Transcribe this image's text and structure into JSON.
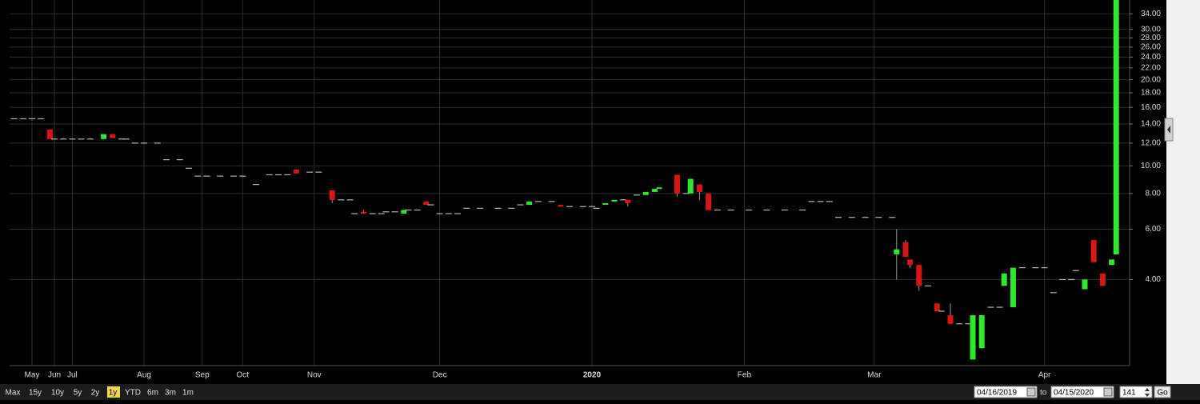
{
  "chart_data": {
    "type": "candlestick",
    "log_scale": true,
    "grid": true,
    "up_color": "#2ee82e",
    "down_color": "#d81414",
    "flat_color": "#b4b4b4",
    "xlim": [
      0,
      250
    ],
    "xticks": [
      {
        "value": 5,
        "label": "May"
      },
      {
        "value": 10,
        "label": "Jun"
      },
      {
        "value": 14,
        "label": "Jul"
      },
      {
        "value": 30,
        "label": "Aug"
      },
      {
        "value": 43,
        "label": "Sep"
      },
      {
        "value": 52,
        "label": "Oct"
      },
      {
        "value": 68,
        "label": "Nov"
      },
      {
        "value": 96,
        "label": "Dec"
      },
      {
        "value": 130,
        "label": "2020"
      },
      {
        "value": 164,
        "label": "Feb"
      },
      {
        "value": 193,
        "label": "Mar"
      },
      {
        "value": 231,
        "label": "Apr"
      }
    ],
    "ylim": [
      2,
      38
    ],
    "yticks": [
      {
        "value": 4,
        "label": "4.00"
      },
      {
        "value": 6,
        "label": "6.00"
      },
      {
        "value": 8,
        "label": "8.00"
      },
      {
        "value": 10,
        "label": "10.00"
      },
      {
        "value": 12,
        "label": "12.00"
      },
      {
        "value": 14,
        "label": "14.00"
      },
      {
        "value": 16,
        "label": "16.00"
      },
      {
        "value": 18,
        "label": "18.00"
      },
      {
        "value": 20,
        "label": "20.00"
      },
      {
        "value": 22,
        "label": "22.00"
      },
      {
        "value": 24,
        "label": "24.00"
      },
      {
        "value": 26,
        "label": "26.00"
      },
      {
        "value": 28,
        "label": "28.00"
      },
      {
        "value": 30,
        "label": "30.00"
      },
      {
        "value": 34,
        "label": "34.00"
      }
    ],
    "x": [
      1,
      3,
      5,
      7,
      9,
      10,
      12,
      14,
      16,
      18,
      21,
      23,
      25,
      26,
      28,
      30,
      33,
      35,
      38,
      40,
      42,
      44,
      47,
      50,
      52,
      55,
      58,
      60,
      62,
      64,
      67,
      69,
      72,
      74,
      76,
      77,
      79,
      81,
      83,
      84,
      86,
      88,
      89,
      91,
      93,
      94,
      96,
      98,
      100,
      102,
      105,
      109,
      112,
      114,
      116,
      118,
      121,
      123,
      125,
      128,
      130,
      131,
      133,
      135,
      137,
      138,
      140,
      142,
      144,
      145,
      149,
      151,
      152,
      154,
      156,
      158,
      161,
      165,
      169,
      173,
      177,
      179,
      181,
      183,
      185,
      188,
      191,
      194,
      197,
      198,
      200,
      201,
      203,
      205,
      207,
      208,
      210,
      212,
      214,
      215,
      217,
      219,
      221,
      222,
      224,
      226,
      229,
      231,
      233,
      235,
      237,
      238,
      240,
      242,
      244,
      246,
      247
    ],
    "open": [
      14.6,
      14.6,
      14.6,
      14.6,
      13.4,
      12.4,
      12.4,
      12.4,
      12.4,
      12.4,
      12.4,
      12.9,
      12.4,
      12.4,
      12.0,
      12.0,
      12.0,
      10.5,
      10.5,
      9.8,
      9.2,
      9.2,
      9.2,
      9.2,
      9.2,
      8.6,
      9.3,
      9.3,
      9.3,
      9.7,
      9.5,
      9.5,
      8.2,
      7.6,
      7.6,
      6.8,
      6.9,
      6.8,
      6.8,
      6.9,
      6.9,
      6.8,
      7.0,
      7.0,
      7.5,
      7.3,
      6.8,
      6.8,
      6.8,
      7.1,
      7.1,
      7.1,
      7.1,
      7.3,
      7.3,
      7.5,
      7.5,
      7.3,
      7.2,
      7.2,
      7.2,
      7.1,
      7.3,
      7.5,
      7.6,
      7.6,
      7.9,
      7.9,
      8.1,
      8.3,
      9.3,
      8.0,
      8.0,
      8.6,
      8.0,
      7.0,
      7.0,
      7.0,
      7.0,
      7.0,
      7.0,
      7.5,
      7.5,
      7.5,
      6.6,
      6.6,
      6.6,
      6.6,
      6.6,
      4.9,
      5.4,
      4.7,
      4.5,
      3.8,
      3.3,
      3.1,
      3.0,
      2.8,
      2.8,
      2.1,
      2.3,
      3.2,
      3.2,
      3.8,
      3.2,
      4.4,
      4.4,
      4.4,
      3.6,
      4.0,
      4.0,
      4.3,
      3.7,
      5.5,
      4.2,
      4.5,
      4.9
    ],
    "high": [
      14.6,
      14.6,
      14.6,
      14.6,
      13.4,
      12.4,
      12.4,
      12.4,
      12.4,
      12.4,
      12.9,
      12.9,
      12.4,
      12.4,
      12.0,
      12.0,
      12.0,
      10.5,
      10.5,
      9.8,
      9.2,
      9.2,
      9.2,
      9.2,
      9.2,
      8.6,
      9.3,
      9.3,
      9.3,
      9.7,
      9.5,
      9.5,
      8.2,
      7.6,
      7.6,
      6.8,
      7.0,
      6.8,
      6.8,
      6.9,
      6.9,
      7.0,
      7.0,
      7.0,
      7.5,
      7.3,
      6.8,
      6.8,
      6.8,
      7.1,
      7.1,
      7.1,
      7.1,
      7.3,
      7.5,
      7.5,
      7.5,
      7.3,
      7.2,
      7.2,
      7.2,
      7.1,
      7.4,
      7.6,
      7.6,
      7.6,
      7.9,
      8.1,
      8.3,
      8.4,
      9.3,
      8.0,
      9.0,
      8.6,
      8.0,
      7.0,
      7.0,
      7.0,
      7.0,
      7.0,
      7.0,
      7.5,
      7.5,
      7.5,
      6.6,
      6.6,
      6.6,
      6.6,
      6.6,
      6.0,
      5.5,
      4.7,
      4.5,
      3.8,
      3.3,
      3.1,
      3.3,
      2.8,
      2.8,
      3.0,
      3.0,
      3.2,
      3.2,
      4.2,
      4.4,
      4.4,
      4.4,
      4.4,
      3.6,
      4.0,
      4.0,
      4.3,
      4.0,
      5.5,
      4.2,
      4.7,
      38
    ],
    "low": [
      14.6,
      14.6,
      14.6,
      14.6,
      12.4,
      12.4,
      12.4,
      12.4,
      12.4,
      12.4,
      12.4,
      12.5,
      12.4,
      12.4,
      12.0,
      12.0,
      12.0,
      10.5,
      10.5,
      9.8,
      9.2,
      9.2,
      9.2,
      9.2,
      9.2,
      8.6,
      9.3,
      9.3,
      9.3,
      9.4,
      9.5,
      9.5,
      7.4,
      7.6,
      7.6,
      6.8,
      6.8,
      6.8,
      6.8,
      6.9,
      6.9,
      6.8,
      7.0,
      7.0,
      7.3,
      7.3,
      6.8,
      6.8,
      6.8,
      7.1,
      7.1,
      7.1,
      7.1,
      7.3,
      7.3,
      7.5,
      7.5,
      7.2,
      7.2,
      7.2,
      7.2,
      7.1,
      7.3,
      7.5,
      7.6,
      7.2,
      7.9,
      7.9,
      8.1,
      8.3,
      7.8,
      8.0,
      8.0,
      7.6,
      7.0,
      7.0,
      7.0,
      7.0,
      7.0,
      7.0,
      7.0,
      7.5,
      7.5,
      7.5,
      6.6,
      6.6,
      6.6,
      6.6,
      6.6,
      4.0,
      4.8,
      4.4,
      3.65,
      3.8,
      3.1,
      3.1,
      2.8,
      2.8,
      2.8,
      2.1,
      2.3,
      3.2,
      3.2,
      3.8,
      3.2,
      4.4,
      4.4,
      4.4,
      3.6,
      4.0,
      4.0,
      4.3,
      3.7,
      4.6,
      3.8,
      4.5,
      4.9
    ],
    "close": [
      14.6,
      14.6,
      14.6,
      14.6,
      12.4,
      12.4,
      12.4,
      12.4,
      12.4,
      12.4,
      12.9,
      12.5,
      12.4,
      12.4,
      12.0,
      12.0,
      12.0,
      10.5,
      10.5,
      9.8,
      9.2,
      9.2,
      9.2,
      9.2,
      9.2,
      8.6,
      9.3,
      9.3,
      9.3,
      9.4,
      9.5,
      9.5,
      7.6,
      7.6,
      7.6,
      6.8,
      6.8,
      6.8,
      6.8,
      6.9,
      6.9,
      7.0,
      7.0,
      7.0,
      7.3,
      7.3,
      6.8,
      6.8,
      6.8,
      7.1,
      7.1,
      7.1,
      7.1,
      7.3,
      7.5,
      7.5,
      7.5,
      7.2,
      7.2,
      7.2,
      7.2,
      7.1,
      7.4,
      7.6,
      7.6,
      7.4,
      7.9,
      8.1,
      8.3,
      8.4,
      8.0,
      8.0,
      9.0,
      8.1,
      7.0,
      7.0,
      7.0,
      7.0,
      7.0,
      7.0,
      7.0,
      7.5,
      7.5,
      7.5,
      6.6,
      6.6,
      6.6,
      6.6,
      6.6,
      5.1,
      4.8,
      4.5,
      3.8,
      3.8,
      3.1,
      3.1,
      2.8,
      2.8,
      2.8,
      3.0,
      3.0,
      3.2,
      3.2,
      4.2,
      4.4,
      4.4,
      4.4,
      4.4,
      3.6,
      4.0,
      4.0,
      4.3,
      4.0,
      4.6,
      3.8,
      4.7,
      38
    ]
  },
  "toolbar": {
    "ranges": [
      "Max",
      "15y",
      "10y",
      "5y",
      "2y",
      "1y",
      "YTD",
      "6m",
      "3m",
      "1m"
    ],
    "selected": 5,
    "from": "04/16/2019",
    "to_label": "to",
    "to": "04/15/2020",
    "count": "141",
    "go": "Go"
  }
}
